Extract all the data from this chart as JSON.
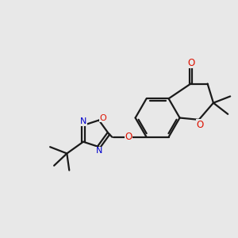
{
  "background_color": "#e8e8e8",
  "bond_color": "#1a1a1a",
  "oxygen_color": "#dd1100",
  "nitrogen_color": "#0000cc",
  "line_width": 1.6,
  "figsize": [
    3.0,
    3.0
  ],
  "dpi": 100,
  "xlim": [
    0,
    10
  ],
  "ylim": [
    0,
    10
  ]
}
